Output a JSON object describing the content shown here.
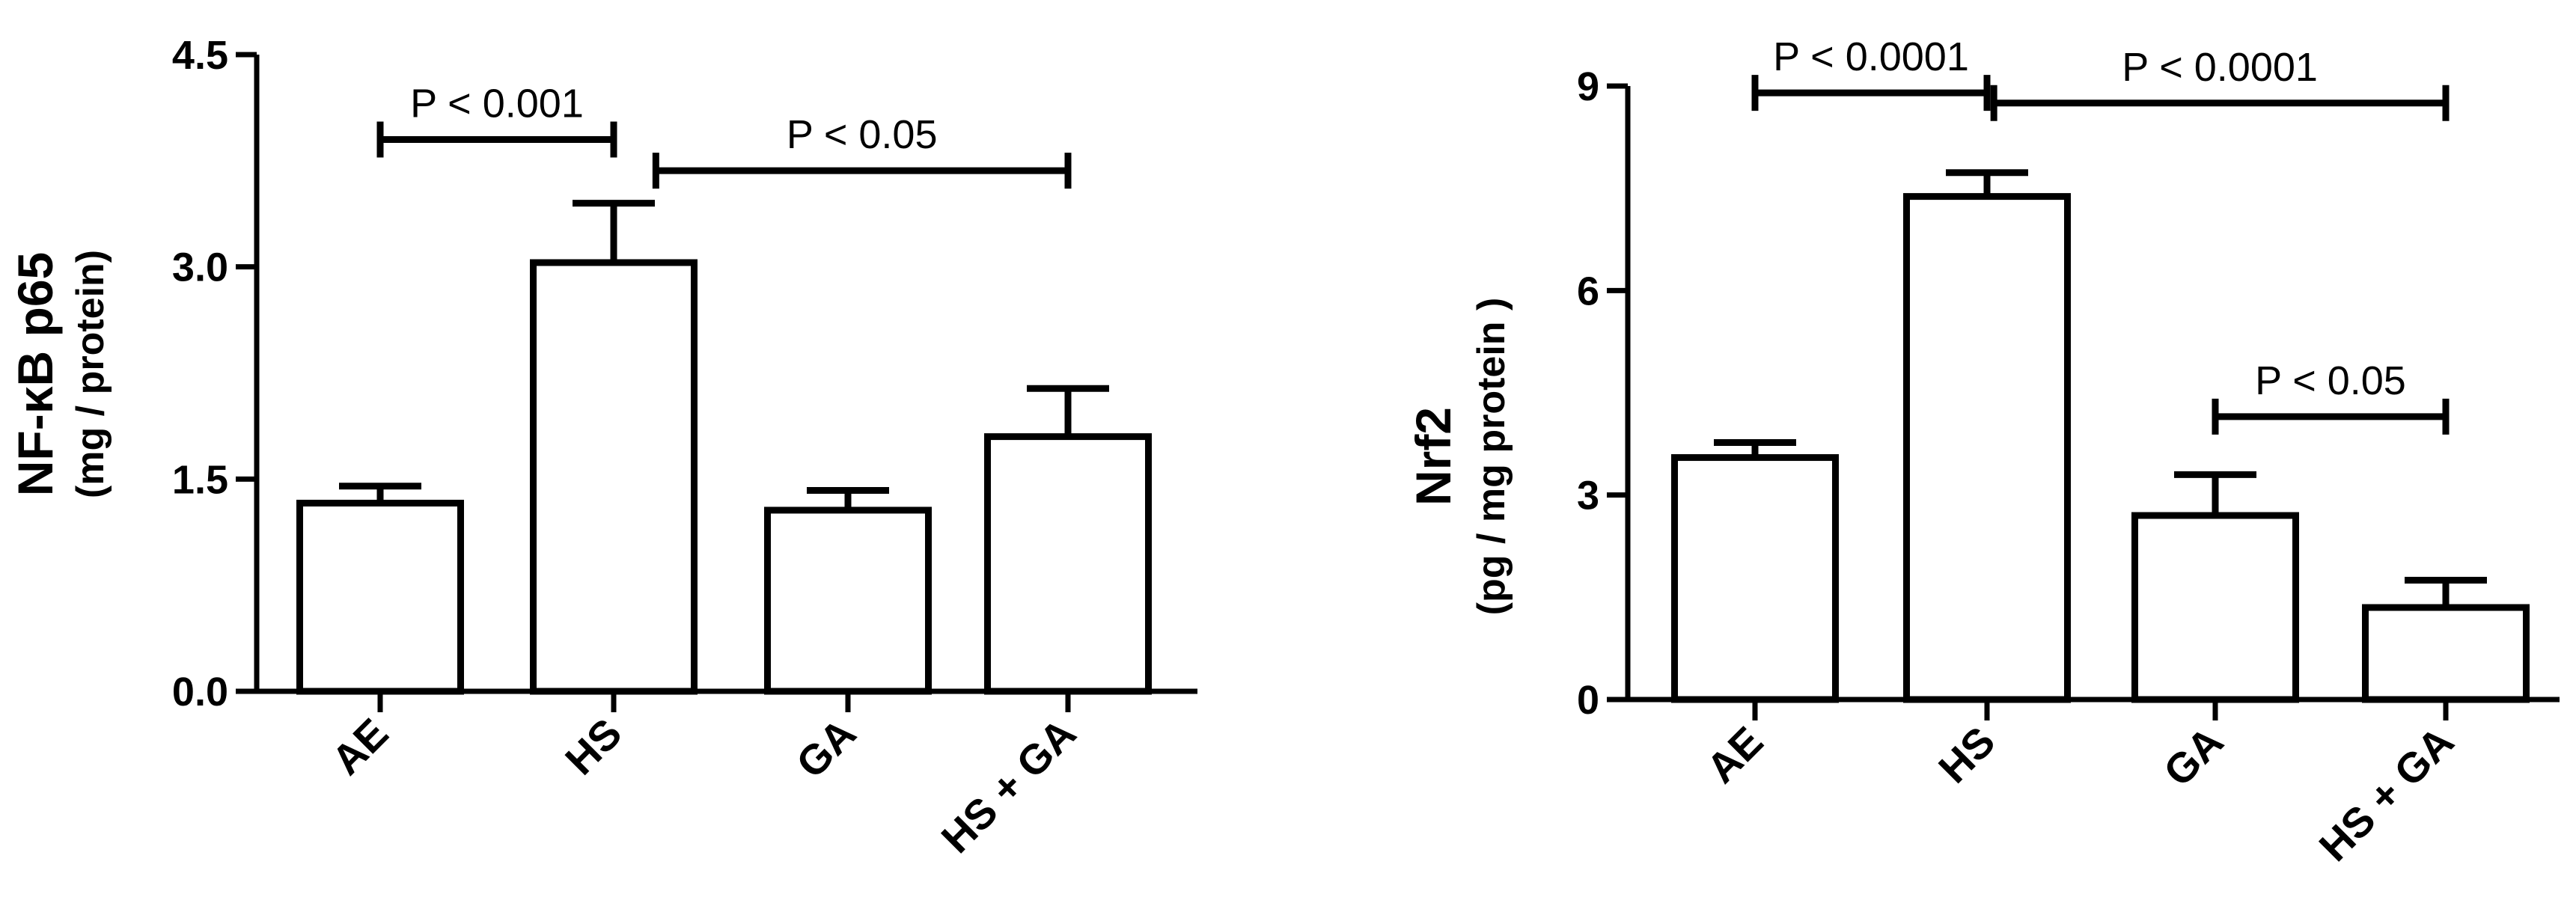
{
  "chart_data": [
    {
      "type": "bar",
      "categories": [
        "AE",
        "HS",
        "GA",
        "HS + GA"
      ],
      "values": [
        1.33,
        3.03,
        1.28,
        1.8
      ],
      "errors": [
        0.12,
        0.42,
        0.14,
        0.34
      ],
      "ylabel": "NF-κB p65",
      "ylabel_sub": "(mg / protein)",
      "ylim": [
        0,
        4.5
      ],
      "yticks": [
        0,
        1.5,
        3,
        4.5
      ],
      "ytick_labels": [
        "0.0",
        "1.5",
        "3.0",
        "4.5"
      ],
      "annotations": [
        {
          "from": 0,
          "to": 1,
          "level": 3.9,
          "label": "P < 0.001"
        },
        {
          "from": 1.18,
          "to": 3,
          "level": 3.68,
          "label": "P < 0.05"
        }
      ]
    },
    {
      "type": "bar",
      "categories": [
        "AE",
        "HS",
        "GA",
        "HS + GA"
      ],
      "values": [
        3.55,
        7.38,
        2.7,
        1.35
      ],
      "errors": [
        0.22,
        0.35,
        0.6,
        0.4
      ],
      "ylabel": "Nrf2",
      "ylabel_sub": "(pg / mg protein )",
      "ylim": [
        0,
        9
      ],
      "yticks": [
        0,
        3,
        6,
        9
      ],
      "ytick_labels": [
        "0",
        "3",
        "6",
        "9"
      ],
      "annotations": [
        {
          "from": 0,
          "to": 1,
          "level": 8.9,
          "label": "P < 0.0001"
        },
        {
          "from": 1.03,
          "to": 3,
          "level": 8.75,
          "label": "P < 0.0001"
        },
        {
          "from": 2,
          "to": 3,
          "level": 4.15,
          "label": "P < 0.05"
        }
      ]
    }
  ]
}
